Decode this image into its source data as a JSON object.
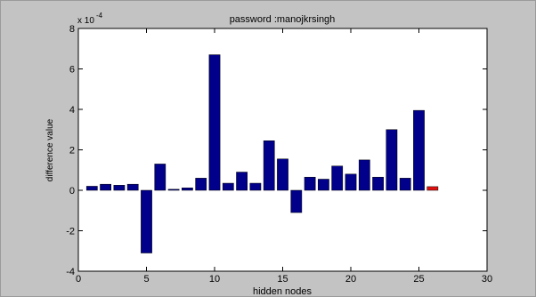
{
  "chart_data": {
    "type": "bar",
    "title": "password :manojkrsingh",
    "xlabel": "hidden nodes",
    "ylabel": "difference value",
    "y_exponent_label": "x 10",
    "y_exponent_power": "-4",
    "xlim": [
      0,
      30
    ],
    "ylim": [
      -4,
      8
    ],
    "xticks": [
      0,
      5,
      10,
      15,
      20,
      25,
      30
    ],
    "yticks": [
      -4,
      -2,
      0,
      2,
      4,
      6,
      8
    ],
    "grid": false,
    "bar_color": "#00008b",
    "highlight_color": "#e01010",
    "highlight_index": 25,
    "x": [
      1,
      2,
      3,
      4,
      5,
      6,
      7,
      8,
      9,
      10,
      11,
      12,
      13,
      14,
      15,
      16,
      17,
      18,
      19,
      20,
      21,
      22,
      23,
      24,
      25,
      26
    ],
    "values": [
      0.2,
      0.3,
      0.25,
      0.3,
      -3.1,
      1.3,
      0.05,
      0.12,
      0.6,
      6.7,
      0.35,
      0.9,
      0.35,
      2.45,
      1.55,
      -1.1,
      0.65,
      0.55,
      1.2,
      0.8,
      1.5,
      0.65,
      3.0,
      0.6,
      3.95,
      0.18
    ]
  }
}
